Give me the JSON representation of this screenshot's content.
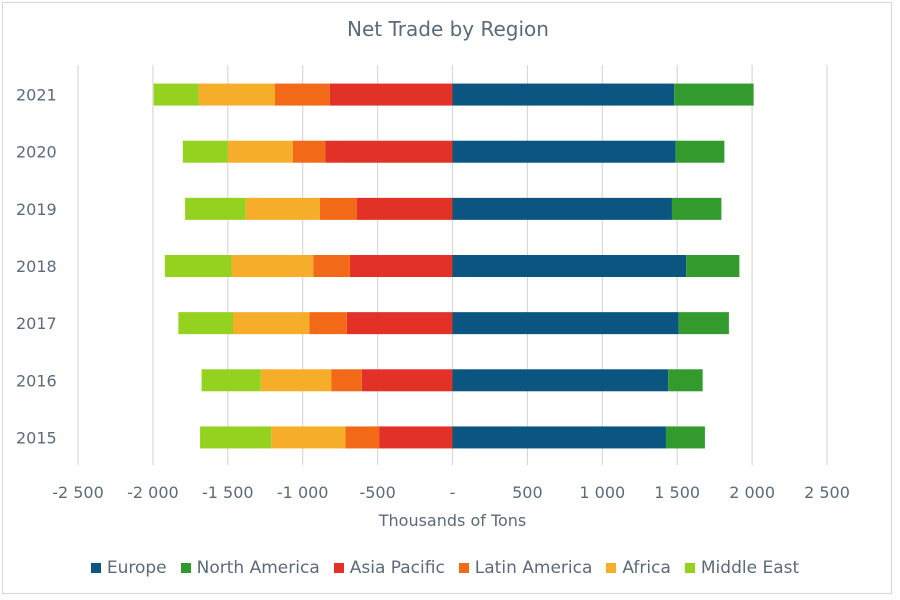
{
  "chart_data": {
    "type": "bar",
    "orientation": "horizontal",
    "stacked": true,
    "title": "Net Trade by Region",
    "xlabel": "Thousands of Tons",
    "ylabel": "",
    "xlim": [
      -2500,
      2500
    ],
    "x_ticks": [
      -2500,
      -2000,
      -1500,
      -1000,
      -500,
      0,
      500,
      1000,
      1500,
      2000,
      2500
    ],
    "x_tick_labels": [
      "-2 500",
      "-2 000",
      "-1 500",
      "-1 000",
      "-500",
      "-",
      "500",
      "1 000",
      "1 500",
      "2 000",
      "2 500"
    ],
    "categories": [
      "2015",
      "2016",
      "2017",
      "2018",
      "2019",
      "2020",
      "2021"
    ],
    "grid": "vertical",
    "legend_position": "bottom",
    "series": [
      {
        "name": "Europe",
        "color": "#0b5680",
        "values": [
          1425,
          1440,
          1510,
          1560,
          1465,
          1490,
          1480
        ]
      },
      {
        "name": "North America",
        "color": "#339a2e",
        "values": [
          260,
          230,
          335,
          355,
          330,
          325,
          530
        ]
      },
      {
        "name": "Asia Pacific",
        "color": "#e23228",
        "values": [
          -490,
          -605,
          -705,
          -685,
          -640,
          -850,
          -820
        ]
      },
      {
        "name": "Latin America",
        "color": "#f26a18",
        "values": [
          -225,
          -205,
          -250,
          -245,
          -245,
          -215,
          -365
        ]
      },
      {
        "name": "Africa",
        "color": "#f5ad2a",
        "values": [
          -495,
          -470,
          -510,
          -545,
          -495,
          -435,
          -510
        ]
      },
      {
        "name": "Middle East",
        "color": "#95d11f",
        "values": [
          -475,
          -395,
          -365,
          -445,
          -405,
          -300,
          -300
        ]
      }
    ]
  }
}
